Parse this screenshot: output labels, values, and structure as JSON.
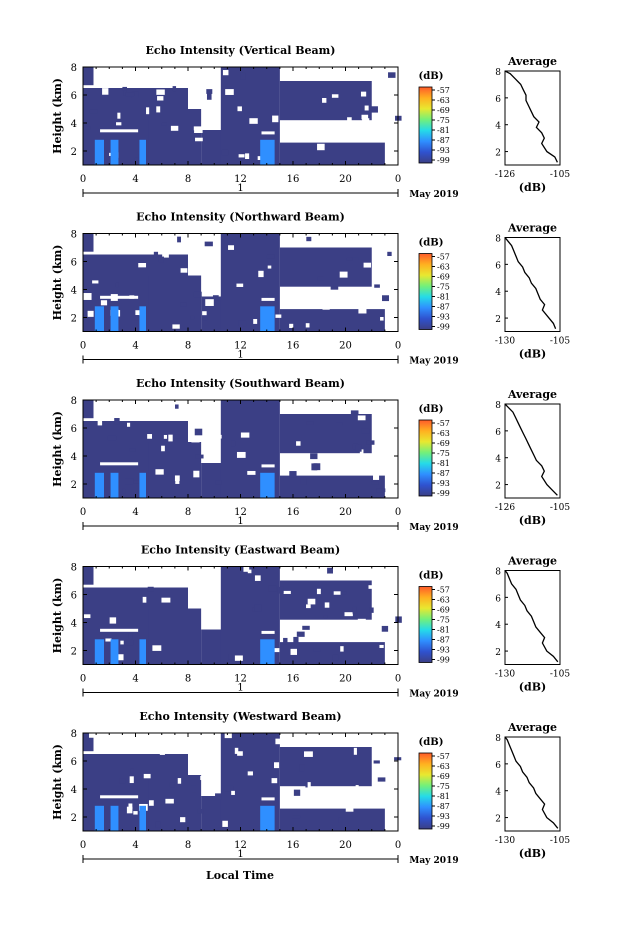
{
  "figure": {
    "xlabel": "Local Time",
    "date_label": "May 2019",
    "date_tick": "1",
    "colorbar_unit": "(dB)",
    "colorbar_ticks": [
      "-57",
      "-63",
      "-69",
      "-75",
      "-81",
      "-87",
      "-93",
      "-99"
    ],
    "colorbar_colors": [
      "#ff5b2a",
      "#ffb020",
      "#e8e830",
      "#73f07a",
      "#25dbe8",
      "#2f8fff",
      "#2f52cf",
      "#3b3f85"
    ],
    "background_color": "#3b3f85",
    "echo_color": "#2f8fff",
    "layer_color": "#ffffff"
  },
  "chart_data": [
    {
      "type": "heatmap",
      "title": "Echo Intensity (Vertical Beam)",
      "ylabel": "Height (km)",
      "x_ticks": [
        "0",
        "4",
        "8",
        "12",
        "16",
        "20",
        "0"
      ],
      "xlim": [
        0,
        24
      ],
      "y_ticks": [
        "2",
        "4",
        "6",
        "8"
      ],
      "ylim": [
        1,
        8
      ],
      "colorbar": {
        "label": "(dB)",
        "ticks": [
          -57,
          -63,
          -69,
          -75,
          -81,
          -87,
          -93,
          -99
        ]
      },
      "profile": {
        "title": "Average",
        "xlabel": "(dB)",
        "x_ticks": [
          "-126",
          "-105"
        ],
        "xlim": [
          -126,
          -105
        ],
        "y_ticks": [
          "2",
          "4",
          "6",
          "8"
        ],
        "ylim": [
          1,
          8
        ],
        "points": [
          [
            -106,
            1.2
          ],
          [
            -107,
            1.6
          ],
          [
            -110,
            2.0
          ],
          [
            -112,
            2.6
          ],
          [
            -111,
            3.0
          ],
          [
            -112,
            3.4
          ],
          [
            -114,
            3.8
          ],
          [
            -113,
            4.2
          ],
          [
            -115,
            4.6
          ],
          [
            -116,
            5.0
          ],
          [
            -117,
            5.4
          ],
          [
            -118,
            5.8
          ],
          [
            -118,
            6.2
          ],
          [
            -119,
            6.6
          ],
          [
            -120,
            7.0
          ],
          [
            -122,
            7.4
          ],
          [
            -124,
            7.8
          ],
          [
            -126,
            8.0
          ]
        ]
      }
    },
    {
      "type": "heatmap",
      "title": "Echo Intensity (Northward Beam)",
      "ylabel": "Height (km)",
      "x_ticks": [
        "0",
        "4",
        "8",
        "12",
        "16",
        "20",
        "0"
      ],
      "xlim": [
        0,
        24
      ],
      "y_ticks": [
        "2",
        "4",
        "6",
        "8"
      ],
      "ylim": [
        1,
        8
      ],
      "colorbar": {
        "label": "(dB)",
        "ticks": [
          -57,
          -63,
          -69,
          -75,
          -81,
          -87,
          -93,
          -99
        ]
      },
      "profile": {
        "title": "Average",
        "xlabel": "(dB)",
        "x_ticks": [
          "-130",
          "-105"
        ],
        "xlim": [
          -130,
          -105
        ],
        "y_ticks": [
          "2",
          "4",
          "6",
          "8"
        ],
        "ylim": [
          1,
          8
        ],
        "points": [
          [
            -107,
            1.2
          ],
          [
            -108,
            1.6
          ],
          [
            -110,
            2.0
          ],
          [
            -113,
            2.6
          ],
          [
            -112,
            3.0
          ],
          [
            -114,
            3.4
          ],
          [
            -115,
            3.8
          ],
          [
            -116,
            4.2
          ],
          [
            -118,
            4.6
          ],
          [
            -119,
            5.0
          ],
          [
            -121,
            5.4
          ],
          [
            -122,
            5.8
          ],
          [
            -124,
            6.2
          ],
          [
            -125,
            6.6
          ],
          [
            -126,
            7.0
          ],
          [
            -127,
            7.4
          ],
          [
            -129,
            7.8
          ],
          [
            -130,
            8.0
          ]
        ]
      }
    },
    {
      "type": "heatmap",
      "title": "Echo Intensity (Southward Beam)",
      "ylabel": "Height (km)",
      "x_ticks": [
        "0",
        "4",
        "8",
        "12",
        "16",
        "20",
        "0"
      ],
      "xlim": [
        0,
        24
      ],
      "y_ticks": [
        "2",
        "4",
        "6",
        "8"
      ],
      "ylim": [
        1,
        8
      ],
      "colorbar": {
        "label": "(dB)",
        "ticks": [
          -57,
          -63,
          -69,
          -75,
          -81,
          -87,
          -93,
          -99
        ]
      },
      "profile": {
        "title": "Average",
        "xlabel": "(dB)",
        "x_ticks": [
          "-126",
          "-105"
        ],
        "xlim": [
          -126,
          -105
        ],
        "y_ticks": [
          "2",
          "4",
          "6",
          "8"
        ],
        "ylim": [
          1,
          8
        ],
        "points": [
          [
            -106,
            1.2
          ],
          [
            -108,
            1.6
          ],
          [
            -110,
            2.0
          ],
          [
            -112,
            2.6
          ],
          [
            -111,
            3.0
          ],
          [
            -112,
            3.4
          ],
          [
            -114,
            3.8
          ],
          [
            -115,
            4.2
          ],
          [
            -116,
            4.6
          ],
          [
            -117,
            5.0
          ],
          [
            -118,
            5.4
          ],
          [
            -119,
            5.8
          ],
          [
            -120,
            6.2
          ],
          [
            -121,
            6.6
          ],
          [
            -122,
            7.0
          ],
          [
            -123,
            7.4
          ],
          [
            -125,
            7.8
          ],
          [
            -126,
            8.0
          ]
        ]
      }
    },
    {
      "type": "heatmap",
      "title": "Echo Intensity (Eastward Beam)",
      "ylabel": "Height (km)",
      "x_ticks": [
        "0",
        "4",
        "8",
        "12",
        "16",
        "20",
        "0"
      ],
      "xlim": [
        0,
        24
      ],
      "y_ticks": [
        "2",
        "4",
        "6",
        "8"
      ],
      "ylim": [
        1,
        8
      ],
      "colorbar": {
        "label": "(dB)",
        "ticks": [
          -57,
          -63,
          -69,
          -75,
          -81,
          -87,
          -93,
          -99
        ]
      },
      "profile": {
        "title": "Average",
        "xlabel": "(dB)",
        "x_ticks": [
          "-130",
          "-105"
        ],
        "xlim": [
          -130,
          -105
        ],
        "y_ticks": [
          "2",
          "4",
          "6",
          "8"
        ],
        "ylim": [
          1,
          8
        ],
        "points": [
          [
            -106,
            1.2
          ],
          [
            -108,
            1.6
          ],
          [
            -111,
            2.0
          ],
          [
            -113,
            2.6
          ],
          [
            -112,
            3.0
          ],
          [
            -114,
            3.4
          ],
          [
            -116,
            3.8
          ],
          [
            -117,
            4.2
          ],
          [
            -118,
            4.6
          ],
          [
            -120,
            5.0
          ],
          [
            -121,
            5.4
          ],
          [
            -123,
            5.8
          ],
          [
            -124,
            6.2
          ],
          [
            -125,
            6.6
          ],
          [
            -127,
            7.0
          ],
          [
            -128,
            7.4
          ],
          [
            -129,
            7.8
          ],
          [
            -130,
            8.0
          ]
        ]
      }
    },
    {
      "type": "heatmap",
      "title": "Echo Intensity (Westward Beam)",
      "ylabel": "Height (km)",
      "x_ticks": [
        "0",
        "4",
        "8",
        "12",
        "16",
        "20",
        "0"
      ],
      "xlim": [
        0,
        24
      ],
      "y_ticks": [
        "2",
        "4",
        "6",
        "8"
      ],
      "ylim": [
        1,
        8
      ],
      "colorbar": {
        "label": "(dB)",
        "ticks": [
          -57,
          -63,
          -69,
          -75,
          -81,
          -87,
          -93,
          -99
        ]
      },
      "profile": {
        "title": "Average",
        "xlabel": "(dB)",
        "x_ticks": [
          "-130",
          "-105"
        ],
        "xlim": [
          -130,
          -105
        ],
        "y_ticks": [
          "2",
          "4",
          "6",
          "8"
        ],
        "ylim": [
          1,
          8
        ],
        "points": [
          [
            -106,
            1.2
          ],
          [
            -108,
            1.6
          ],
          [
            -111,
            2.0
          ],
          [
            -113,
            2.6
          ],
          [
            -112,
            3.0
          ],
          [
            -114,
            3.4
          ],
          [
            -116,
            3.8
          ],
          [
            -117,
            4.2
          ],
          [
            -119,
            4.6
          ],
          [
            -120,
            5.0
          ],
          [
            -122,
            5.4
          ],
          [
            -123,
            5.8
          ],
          [
            -125,
            6.2
          ],
          [
            -126,
            6.6
          ],
          [
            -127,
            7.0
          ],
          [
            -128,
            7.4
          ],
          [
            -129,
            7.8
          ],
          [
            -130,
            8.0
          ]
        ]
      }
    }
  ]
}
